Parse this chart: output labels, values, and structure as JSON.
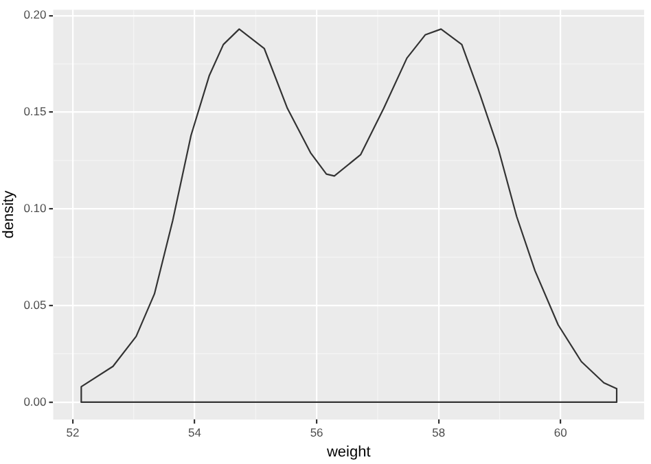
{
  "chart_data": {
    "type": "line",
    "xlabel": "weight",
    "ylabel": "density",
    "x": [
      52.14,
      52.14,
      52.66,
      53.04,
      53.34,
      53.64,
      53.94,
      54.24,
      54.47,
      54.73,
      55.14,
      55.52,
      55.9,
      56.16,
      56.29,
      56.72,
      57.1,
      57.48,
      57.78,
      58.04,
      58.38,
      58.68,
      58.98,
      59.28,
      59.58,
      59.96,
      60.34,
      60.71,
      60.92,
      60.92
    ],
    "series": [
      {
        "color": "#333333",
        "values": [
          0,
          0.008,
          0.0185,
          0.034,
          0.056,
          0.094,
          0.138,
          0.169,
          0.185,
          0.193,
          0.183,
          0.152,
          0.129,
          0.118,
          0.117,
          0.128,
          0.152,
          0.178,
          0.19,
          0.193,
          0.185,
          0.159,
          0.131,
          0.096,
          0.068,
          0.04,
          0.021,
          0.01,
          0.007,
          0
        ]
      },
      {
        "color": "#333333",
        "x": [
          52.14,
          60.92
        ],
        "values": [
          0,
          0
        ]
      }
    ],
    "xlim": [
      51.68,
      61.37
    ],
    "xticks": [
      52,
      54,
      56,
      58,
      60
    ],
    "ylim": [
      -0.009,
      0.203
    ],
    "yticks": [
      {
        "value": 0,
        "label": "0.00"
      },
      {
        "value": 0.05,
        "label": "0.05"
      },
      {
        "value": 0.1,
        "label": "0.10"
      },
      {
        "value": 0.15,
        "label": "0.15"
      },
      {
        "value": 0.2,
        "label": "0.20"
      }
    ],
    "grid": true,
    "legend": false,
    "marker": "none",
    "line_style": "solid"
  }
}
